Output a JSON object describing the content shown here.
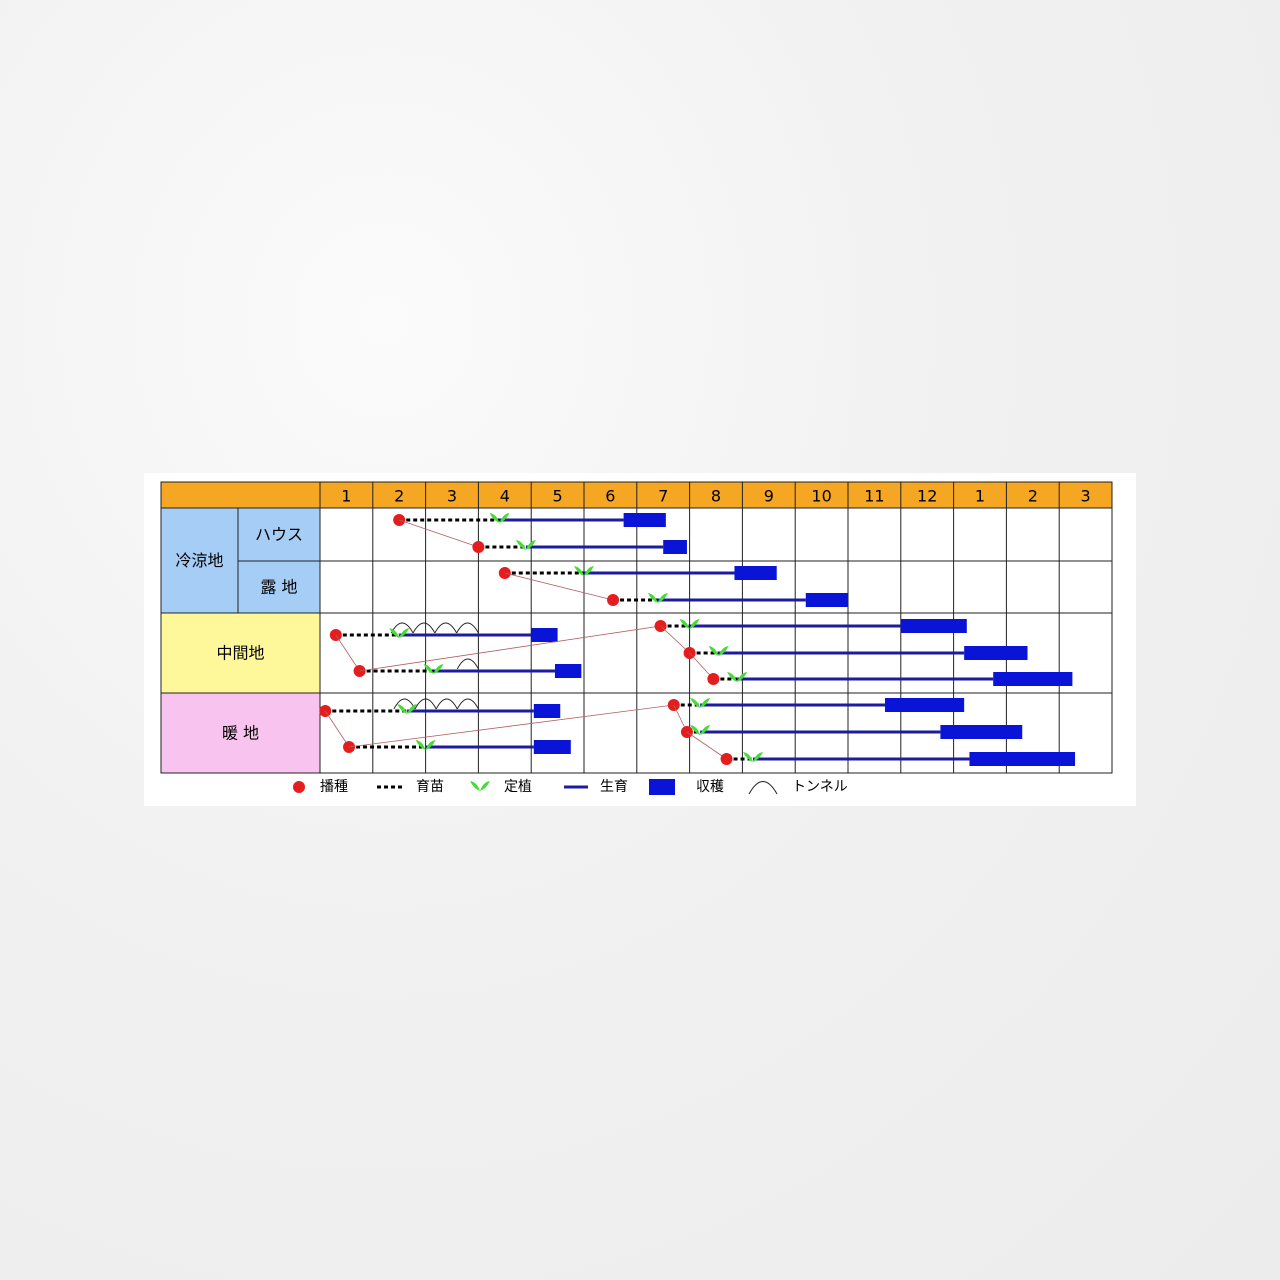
{
  "colors": {
    "header": "#f5a623",
    "cool_region": "#a6cdf5",
    "middle_region": "#fff89a",
    "warm_region": "#f8c3ee",
    "sowing_dot": "#e41e1e",
    "seedling_line": "#000000",
    "planting_mark": "#44dd33",
    "growth_line": "#1c1c9e",
    "harvest_bar": "#0a14d6"
  },
  "schedule": {
    "months": [
      "1",
      "2",
      "3",
      "4",
      "5",
      "6",
      "7",
      "8",
      "9",
      "10",
      "11",
      "12",
      "1",
      "2",
      "3"
    ],
    "regions": {
      "cool": "冷涼地",
      "cool_house": "ハウス",
      "cool_field": "露 地",
      "middle": "中間地",
      "warm": "暖 地"
    },
    "legend": {
      "sowing": "播種",
      "seedling": "育苗",
      "planting": "定植",
      "growth": "生育",
      "harvest": "収穫",
      "tunnel": "トンネル"
    }
  },
  "chart_data": {
    "type": "gantt",
    "x_unit": "month (1 = January; months 13–15 = following January–March)",
    "x_range": [
      1,
      16
    ],
    "rows": [
      {
        "region": "cool",
        "sub": "cool_house",
        "sow": 2.5,
        "plant": 4.4,
        "harvest": [
          6.75,
          7.55
        ],
        "tunnel": null
      },
      {
        "region": "cool",
        "sub": "cool_house",
        "sow": 4.0,
        "plant": 4.9,
        "harvest": [
          7.5,
          7.95
        ],
        "tunnel": null
      },
      {
        "region": "cool",
        "sub": "cool_field",
        "sow": 4.5,
        "plant": 6.0,
        "harvest": [
          8.85,
          9.65
        ],
        "tunnel": null
      },
      {
        "region": "cool",
        "sub": "cool_field",
        "sow": 6.55,
        "plant": 7.4,
        "harvest": [
          10.2,
          11.0
        ],
        "tunnel": null
      },
      {
        "region": "middle",
        "sub": null,
        "sow": 1.3,
        "plant": 2.5,
        "harvest": [
          5.0,
          5.5
        ],
        "tunnel": [
          2.35,
          4.0
        ]
      },
      {
        "region": "middle",
        "sub": null,
        "sow": 1.75,
        "plant": 3.15,
        "harvest": [
          5.45,
          5.95
        ],
        "tunnel": [
          3.6,
          4.0
        ]
      },
      {
        "region": "middle",
        "sub": null,
        "sow": 7.45,
        "plant": 8.0,
        "harvest": [
          12.0,
          13.25
        ],
        "tunnel": null
      },
      {
        "region": "middle",
        "sub": null,
        "sow": 8.0,
        "plant": 8.55,
        "harvest": [
          13.2,
          14.4
        ],
        "tunnel": null
      },
      {
        "region": "middle",
        "sub": null,
        "sow": 8.45,
        "plant": 8.9,
        "harvest": [
          13.75,
          15.25
        ],
        "tunnel": null
      },
      {
        "region": "warm",
        "sub": null,
        "sow": 1.1,
        "plant": 2.65,
        "harvest": [
          5.05,
          5.55
        ],
        "tunnel": [
          2.4,
          4.0
        ]
      },
      {
        "region": "warm",
        "sub": null,
        "sow": 1.55,
        "plant": 3.0,
        "harvest": [
          5.05,
          5.75
        ],
        "tunnel": null
      },
      {
        "region": "warm",
        "sub": null,
        "sow": 7.7,
        "plant": 8.2,
        "harvest": [
          11.7,
          13.2
        ],
        "tunnel": null
      },
      {
        "region": "warm",
        "sub": null,
        "sow": 7.95,
        "plant": 8.2,
        "harvest": [
          12.75,
          14.3
        ],
        "tunnel": null
      },
      {
        "region": "warm",
        "sub": null,
        "sow": 8.7,
        "plant": 9.2,
        "harvest": [
          13.3,
          15.3
        ],
        "tunnel": null
      }
    ]
  }
}
